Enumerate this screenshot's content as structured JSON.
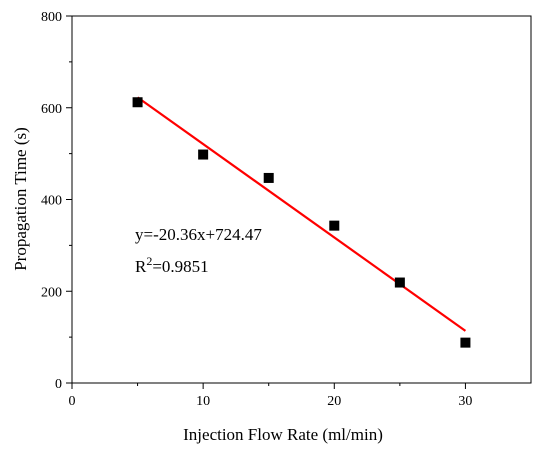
{
  "chart_data": {
    "type": "scatter",
    "title": "",
    "xlabel": "Injection Flow Rate (ml/min)",
    "ylabel": "Propagation Time (s)",
    "xlim": [
      0,
      35
    ],
    "ylim": [
      0,
      800
    ],
    "x_ticks": [
      0,
      10,
      20,
      30
    ],
    "x_tick_labels": [
      "0",
      "10",
      "20",
      "30"
    ],
    "y_ticks": [
      0,
      200,
      400,
      600,
      800
    ],
    "y_tick_labels": [
      "0",
      "200",
      "400",
      "600",
      "800"
    ],
    "grid": false,
    "legend": "none",
    "series": [
      {
        "type": "scatter",
        "marker": "square",
        "color": "#000000",
        "x": [
          5,
          10,
          15,
          20,
          25,
          30
        ],
        "y": [
          612,
          498,
          447,
          343,
          219,
          88
        ]
      }
    ],
    "fit": {
      "type": "line",
      "color": "#ff0000",
      "slope": -20.36,
      "intercept": 724.47,
      "x_range": [
        5,
        30
      ]
    },
    "annotations": {
      "equation": "y=-20.36x+724.47",
      "r2_prefix": "R",
      "r2_sup": "2",
      "r2_suffix": "=0.9851"
    }
  }
}
